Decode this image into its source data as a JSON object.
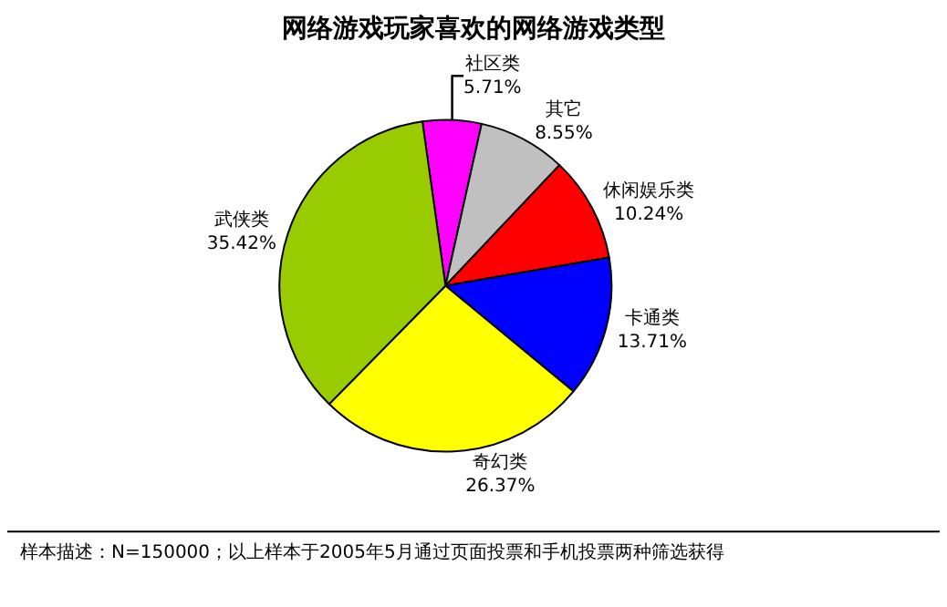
{
  "chart_data": {
    "type": "pie",
    "title": "网络游戏玩家喜欢的网络游戏类型",
    "categories": [
      "社区类",
      "其它",
      "休闲娱乐类",
      "卡通类",
      "奇幻类",
      "武侠类"
    ],
    "values": [
      5.71,
      8.55,
      10.24,
      13.71,
      26.37,
      35.42
    ],
    "value_labels": [
      "5.71%",
      "8.55%",
      "10.24%",
      "13.71%",
      "26.37%",
      "35.42%"
    ],
    "colors": [
      "#ff00ff",
      "#c0c0c0",
      "#ff0000",
      "#0000ff",
      "#ffff00",
      "#99cc00"
    ],
    "legend": false,
    "annotations": [
      "样本描述：N=150000；以上样本于2005年5月通过页面投票和手机投票两种筛选获得"
    ]
  }
}
